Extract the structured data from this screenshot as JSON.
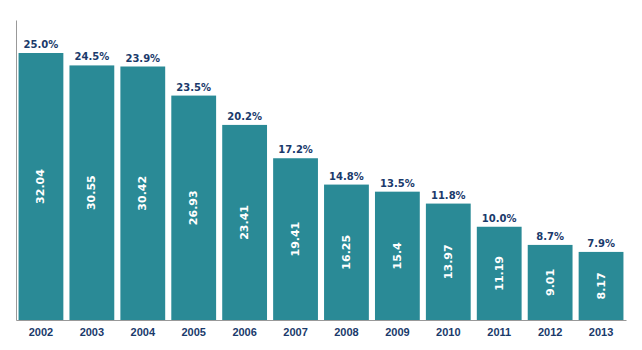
{
  "chart_data": {
    "type": "bar",
    "categories": [
      "2002",
      "2003",
      "2004",
      "2005",
      "2006",
      "2007",
      "2008",
      "2009",
      "2010",
      "2011",
      "2012",
      "2013"
    ],
    "values": [
      32.04,
      30.55,
      30.42,
      26.93,
      23.41,
      19.41,
      16.25,
      15.4,
      13.97,
      11.19,
      9.01,
      8.17
    ],
    "annotations": [
      "25.0%",
      "24.5%",
      "23.9%",
      "23.5%",
      "20.2%",
      "17.2%",
      "14.8%",
      "13.5%",
      "11.8%",
      "10.0%",
      "8.7%",
      "7.9%"
    ],
    "color": "#2a8a96",
    "ylim": [
      0,
      36
    ],
    "grid": false,
    "data_labels": true,
    "tick_labels": "x"
  }
}
